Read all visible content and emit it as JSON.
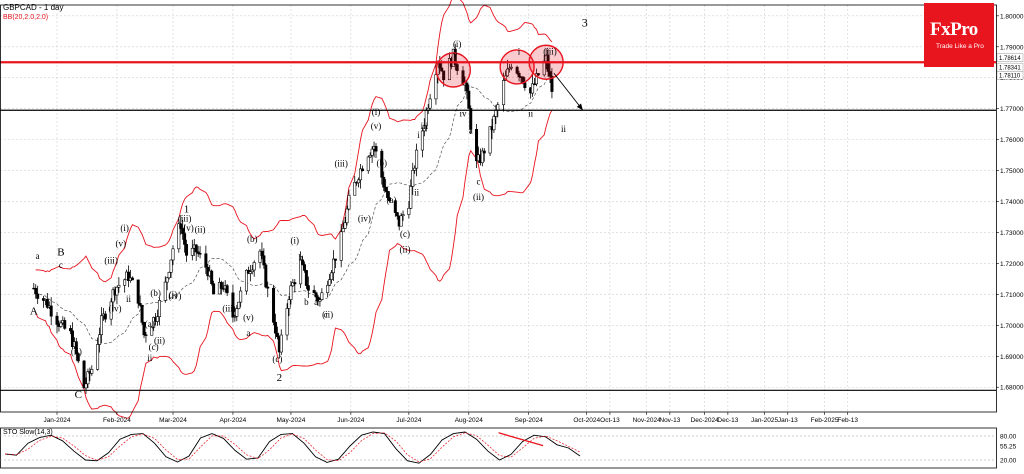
{
  "header": {
    "symbol_title": "GBPCAD - 1 day",
    "indicator_title": "BB(20,2.0,2.0)"
  },
  "logo": {
    "brand": "FxPro",
    "tagline": "Trade Like a Pro"
  },
  "chart_data": {
    "type": "candlestick",
    "title": "GBPCAD - 1 day",
    "y_range": [
      1.672,
      1.8035
    ],
    "y_ticks": [
      "1.80000",
      "1.79000",
      "1.78000",
      "1.77000",
      "1.76000",
      "1.75000",
      "1.74000",
      "1.73000",
      "1.72000",
      "1.71000",
      "1.70000",
      "1.69000",
      "1.68000"
    ],
    "price_labels": [
      "1.78614",
      "1.78341",
      "1.78110"
    ],
    "x_labels": [
      {
        "label": "Jan-2024",
        "date": "2024-01-01"
      },
      {
        "label": "Feb-2024",
        "date": "2024-02-01"
      },
      {
        "label": "Mar-2024",
        "date": "2024-03-01"
      },
      {
        "label": "Apr-2024",
        "date": "2024-04-01"
      },
      {
        "label": "May-2024",
        "date": "2024-05-01"
      },
      {
        "label": "Jun-2024",
        "date": "2024-06-01"
      },
      {
        "label": "Jul-2024",
        "date": "2024-07-01"
      },
      {
        "label": "Aug-2024",
        "date": "2024-08-01"
      },
      {
        "label": "Sep-2024",
        "date": "2024-09-01"
      },
      {
        "label": "Oct-2024",
        "date": "2024-10-01"
      },
      {
        "label": "Oct-13",
        "date": "2024-10-13"
      },
      {
        "label": "Nov-2024",
        "date": "2024-11-01"
      },
      {
        "label": "Nov-13",
        "date": "2024-11-13"
      },
      {
        "label": "Dec-2024",
        "date": "2024-12-01"
      },
      {
        "label": "Dec-13",
        "date": "2024-12-13"
      },
      {
        "label": "Jan-2025",
        "date": "2025-01-01"
      },
      {
        "label": "Jan-13",
        "date": "2025-01-13"
      },
      {
        "label": "Feb-2025",
        "date": "2025-02-01"
      },
      {
        "label": "Feb-13",
        "date": "2025-02-13"
      }
    ],
    "price_path": [
      [
        "2023-12-20",
        1.712
      ],
      [
        "2023-12-27",
        1.707
      ],
      [
        "2024-01-03",
        1.7
      ],
      [
        "2024-01-08",
        1.697
      ],
      [
        "2024-01-10",
        1.693
      ],
      [
        "2024-01-15",
        1.68
      ],
      [
        "2024-01-19",
        1.686
      ],
      [
        "2024-01-24",
        1.701
      ],
      [
        "2024-01-31",
        1.712
      ],
      [
        "2024-02-07",
        1.716
      ],
      [
        "2024-02-12",
        1.709
      ],
      [
        "2024-02-15",
        1.697
      ],
      [
        "2024-02-21",
        1.703
      ],
      [
        "2024-02-26",
        1.713
      ],
      [
        "2024-03-01",
        1.725
      ],
      [
        "2024-03-05",
        1.733
      ],
      [
        "2024-03-08",
        1.723
      ],
      [
        "2024-03-13",
        1.724
      ],
      [
        "2024-03-19",
        1.718
      ],
      [
        "2024-03-22",
        1.71
      ],
      [
        "2024-03-27",
        1.713
      ],
      [
        "2024-04-01",
        1.703
      ],
      [
        "2024-04-05",
        1.71
      ],
      [
        "2024-04-09",
        1.718
      ],
      [
        "2024-04-15",
        1.724
      ],
      [
        "2024-04-19",
        1.711
      ],
      [
        "2024-04-23",
        1.699
      ],
      [
        "2024-04-25",
        1.691
      ],
      [
        "2024-04-30",
        1.71
      ],
      [
        "2024-05-06",
        1.72
      ],
      [
        "2024-05-10",
        1.712
      ],
      [
        "2024-05-16",
        1.708
      ],
      [
        "2024-05-21",
        1.717
      ],
      [
        "2024-05-27",
        1.728
      ],
      [
        "2024-05-31",
        1.74
      ],
      [
        "2024-06-05",
        1.749
      ],
      [
        "2024-06-10",
        1.756
      ],
      [
        "2024-06-13",
        1.758
      ],
      [
        "2024-06-17",
        1.748
      ],
      [
        "2024-06-21",
        1.739
      ],
      [
        "2024-06-26",
        1.733
      ],
      [
        "2024-07-01",
        1.74
      ],
      [
        "2024-07-04",
        1.752
      ],
      [
        "2024-07-09",
        1.766
      ],
      [
        "2024-07-12",
        1.775
      ],
      [
        "2024-07-16",
        1.786
      ],
      [
        "2024-07-19",
        1.781
      ],
      [
        "2024-07-24",
        1.787
      ],
      [
        "2024-07-30",
        1.778
      ],
      [
        "2024-08-02",
        1.765
      ],
      [
        "2024-08-05",
        1.752
      ],
      [
        "2024-08-08",
        1.755
      ],
      [
        "2024-08-13",
        1.764
      ],
      [
        "2024-08-19",
        1.778
      ],
      [
        "2024-08-23",
        1.785
      ],
      [
        "2024-08-28",
        1.781
      ],
      [
        "2024-09-02",
        1.775
      ],
      [
        "2024-09-06",
        1.781
      ],
      [
        "2024-09-10",
        1.786
      ],
      [
        "2024-09-13",
        1.776
      ],
      [
        "2024-09-16",
        1.783
      ]
    ],
    "horizontal_lines": [
      {
        "level": 1.785,
        "color": "#e8141e",
        "style": "resistance"
      },
      {
        "level": 1.7695,
        "color": "#000000",
        "style": "support"
      },
      {
        "level": 1.679,
        "color": "#000000",
        "style": "support"
      }
    ],
    "circles": [
      {
        "date": "2024-07-24",
        "level": 1.7825
      },
      {
        "date": "2024-08-26",
        "level": 1.7835
      },
      {
        "date": "2024-09-10",
        "level": 1.785
      }
    ],
    "forecast_arrow": {
      "from": [
        "2024-09-14",
        1.7815
      ],
      "to": [
        "2024-09-29",
        1.7695
      ]
    },
    "wave_labels": [
      {
        "text": "1",
        "date": "2024-03-08",
        "level": 1.7365,
        "size": 11
      },
      {
        "text": "2",
        "date": "2024-04-25",
        "level": 1.682,
        "size": 11
      },
      {
        "text": "3",
        "date": "2024-09-30",
        "level": 1.7965,
        "size": 12
      },
      {
        "text": "A",
        "date": "2023-12-20",
        "level": 1.7035,
        "size": 11
      },
      {
        "text": "B",
        "date": "2024-01-03",
        "level": 1.7225,
        "size": 11
      },
      {
        "text": "C",
        "date": "2024-01-12",
        "level": 1.6765,
        "size": 11
      },
      {
        "text": "a",
        "date": "2023-12-22",
        "level": 1.7215,
        "size": 9
      },
      {
        "text": "c",
        "date": "2024-01-03",
        "level": 1.7185,
        "size": 9
      },
      {
        "text": "a",
        "date": "2024-05-14",
        "level": 1.7065,
        "size": 9
      },
      {
        "text": "c",
        "date": "2024-05-19",
        "level": 1.7025,
        "size": 9
      },
      {
        "text": "b",
        "date": "2024-05-09",
        "level": 1.7065,
        "size": 9
      },
      {
        "text": "a",
        "date": "2024-08-02",
        "level": 1.762,
        "size": 9
      },
      {
        "text": "c",
        "date": "2024-08-06",
        "level": 1.7455,
        "size": 9
      },
      {
        "text": "i",
        "date": "2024-07-06",
        "level": 1.7605,
        "size": 9
      },
      {
        "text": "iii",
        "date": "2024-07-09",
        "level": 1.7635,
        "size": 9
      },
      {
        "text": "iv",
        "date": "2024-07-29",
        "level": 1.7675,
        "size": 9
      },
      {
        "text": "ii",
        "date": "2024-07-05",
        "level": 1.742,
        "size": 9
      },
      {
        "text": "ii",
        "date": "2024-09-19",
        "level": 1.7625,
        "size": 9
      },
      {
        "text": "ii",
        "date": "2024-02-07",
        "level": 1.7075,
        "size": 9
      },
      {
        "text": "(i)",
        "date": "2024-02-05",
        "level": 1.7305,
        "size": 9
      },
      {
        "text": "(v)",
        "date": "2024-02-03",
        "level": 1.7255,
        "size": 9
      },
      {
        "text": "(iii)",
        "date": "2024-01-29",
        "level": 1.72,
        "size": 9
      },
      {
        "text": "(iv)",
        "date": "2024-01-31",
        "level": 1.7045,
        "size": 9
      },
      {
        "text": "(ii)",
        "date": "2024-01-11",
        "level": 1.6905,
        "size": 9
      },
      {
        "text": "(a)",
        "date": "2024-02-18",
        "level": 1.6995,
        "size": 9
      },
      {
        "text": "(c)",
        "date": "2024-02-20",
        "level": 1.692,
        "size": 9
      },
      {
        "text": "(b)",
        "date": "2024-02-21",
        "level": 1.7094,
        "size": 9
      },
      {
        "text": "(ii)",
        "date": "2024-02-23",
        "level": 1.6942,
        "size": 9
      },
      {
        "text": "ii",
        "date": "2024-02-18",
        "level": 1.6885,
        "size": 9
      },
      {
        "text": "(iv)",
        "date": "2024-03-02",
        "level": 1.7085,
        "size": 9
      },
      {
        "text": "(i)",
        "date": "2024-03-01",
        "level": 1.709,
        "size": 9
      },
      {
        "text": "(iii)",
        "date": "2024-03-07",
        "level": 1.7335,
        "size": 9
      },
      {
        "text": "(v)",
        "date": "2024-03-09",
        "level": 1.7305,
        "size": 9
      },
      {
        "text": "(ii)",
        "date": "2024-03-15",
        "level": 1.73,
        "size": 9
      },
      {
        "text": "(iii)",
        "date": "2024-03-30",
        "level": 1.7045,
        "size": 9
      },
      {
        "text": "(v)",
        "date": "2024-04-09",
        "level": 1.7015,
        "size": 9
      },
      {
        "text": "(b)",
        "date": "2024-04-11",
        "level": 1.727,
        "size": 9
      },
      {
        "text": "a",
        "date": "2024-04-09",
        "level": 1.6965,
        "size": 9
      },
      {
        "text": "(c)",
        "date": "2024-04-24",
        "level": 1.6882,
        "size": 9
      },
      {
        "text": "(i)",
        "date": "2024-05-03",
        "level": 1.7265,
        "size": 9
      },
      {
        "text": "(ii)",
        "date": "2024-05-20",
        "level": 1.7025,
        "size": 9
      },
      {
        "text": "b",
        "date": "2024-05-06",
        "level": 1.721,
        "size": 9
      },
      {
        "text": "(iii)",
        "date": "2024-05-27",
        "level": 1.7513,
        "size": 9
      },
      {
        "text": "(iv)",
        "date": "2024-06-08",
        "level": 1.7335,
        "size": 9
      },
      {
        "text": "(i)",
        "date": "2024-06-14",
        "level": 1.768,
        "size": 9
      },
      {
        "text": "(v)",
        "date": "2024-06-14",
        "level": 1.7635,
        "size": 9
      },
      {
        "text": "(b)",
        "date": "2024-06-17",
        "level": 1.7515,
        "size": 9
      },
      {
        "text": "(a)",
        "date": "2024-06-22",
        "level": 1.7395,
        "size": 9
      },
      {
        "text": "(c)",
        "date": "2024-06-29",
        "level": 1.7285,
        "size": 9
      },
      {
        "text": "(ii)",
        "date": "2024-06-29",
        "level": 1.7235,
        "size": 9
      },
      {
        "text": "(i)",
        "date": "2024-07-26",
        "level": 1.79,
        "size": 9
      },
      {
        "text": "v",
        "date": "2024-07-25",
        "level": 1.7865,
        "size": 9
      },
      {
        "text": "(ii)",
        "date": "2024-08-06",
        "level": 1.7405,
        "size": 9
      },
      {
        "text": "i",
        "date": "2024-08-27",
        "level": 1.7875,
        "size": 9
      },
      {
        "text": "ii",
        "date": "2024-09-02",
        "level": 1.7675,
        "size": 9
      },
      {
        "text": "(iii)",
        "date": "2024-09-12",
        "level": 1.7875,
        "size": 9
      }
    ],
    "bollinger": {
      "period": 20,
      "deviation": 2.0,
      "color": "#e8141e"
    },
    "stochastic": {
      "title": "STO Slow(14,3)",
      "y_range": [
        0,
        100
      ],
      "levels": [
        80,
        20
      ],
      "tick_labels": [
        "80.00",
        "55.25",
        "20.00"
      ],
      "k_path": [
        [
          0,
          35
        ],
        [
          2,
          32
        ],
        [
          4,
          62
        ],
        [
          6,
          76
        ],
        [
          8,
          82
        ],
        [
          10,
          68
        ],
        [
          12,
          42
        ],
        [
          14,
          20
        ],
        [
          16,
          18
        ],
        [
          18,
          38
        ],
        [
          20,
          72
        ],
        [
          22,
          84
        ],
        [
          24,
          86
        ],
        [
          26,
          62
        ],
        [
          28,
          28
        ],
        [
          30,
          15
        ],
        [
          32,
          30
        ],
        [
          34,
          75
        ],
        [
          36,
          86
        ],
        [
          38,
          74
        ],
        [
          40,
          44
        ],
        [
          42,
          22
        ],
        [
          44,
          25
        ],
        [
          46,
          66
        ],
        [
          48,
          84
        ],
        [
          50,
          86
        ],
        [
          52,
          62
        ],
        [
          54,
          28
        ],
        [
          56,
          14
        ],
        [
          58,
          22
        ],
        [
          60,
          55
        ],
        [
          62,
          82
        ],
        [
          64,
          90
        ],
        [
          66,
          86
        ],
        [
          68,
          48
        ],
        [
          70,
          18
        ],
        [
          72,
          12
        ],
        [
          74,
          34
        ],
        [
          76,
          70
        ],
        [
          78,
          86
        ],
        [
          80,
          90
        ],
        [
          82,
          72
        ],
        [
          84,
          42
        ],
        [
          86,
          20
        ],
        [
          88,
          34
        ],
        [
          90,
          66
        ],
        [
          92,
          82
        ],
        [
          94,
          78
        ],
        [
          96,
          58
        ],
        [
          98,
          50
        ],
        [
          100,
          30
        ]
      ],
      "trendline": [
        [
          0.86,
          88
        ],
        [
          0.98,
          56
        ]
      ]
    }
  }
}
